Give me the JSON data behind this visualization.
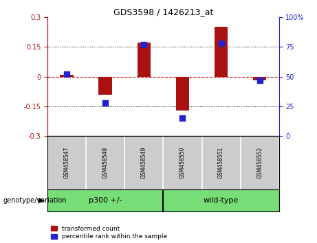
{
  "title": "GDS3598 / 1426213_at",
  "samples": [
    "GSM458547",
    "GSM458548",
    "GSM458549",
    "GSM458550",
    "GSM458551",
    "GSM458552"
  ],
  "red_bars": [
    0.01,
    -0.09,
    0.17,
    -0.17,
    0.25,
    -0.02
  ],
  "blue_dots": [
    52,
    28,
    77,
    15,
    78,
    47
  ],
  "ylim_left": [
    -0.3,
    0.3
  ],
  "ylim_right": [
    0,
    100
  ],
  "yticks_left": [
    -0.3,
    -0.15,
    0,
    0.15,
    0.3
  ],
  "yticks_right": [
    0,
    25,
    50,
    75,
    100
  ],
  "red_color": "#aa1111",
  "blue_color": "#2222cc",
  "hline_color": "#cc0000",
  "bg_color": "white",
  "plot_bg": "white",
  "bar_width": 0.35,
  "blue_dot_size": 40,
  "legend_red": "transformed count",
  "legend_blue": "percentile rank within the sample",
  "genotype_label": "genotype/variation",
  "group_label_1": "p300 +/-",
  "group_label_2": "wild-type",
  "group_color": "#77dd77",
  "label_bg": "#cccccc",
  "group_divider": 2.5,
  "n_samples": 6
}
